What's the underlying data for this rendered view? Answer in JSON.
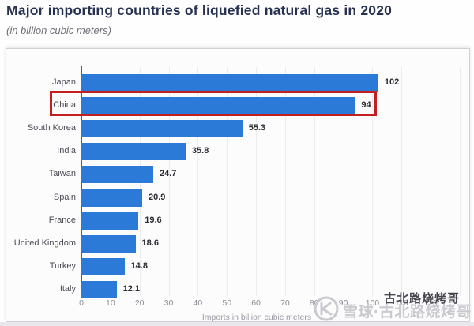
{
  "header": {
    "title": "Major importing countries of liquefied natural gas in 2020",
    "subtitle": "(in billion cubic meters)"
  },
  "chart_data": {
    "type": "bar",
    "orientation": "horizontal",
    "title": "Major importing countries of liquefied natural gas in 2020",
    "subtitle": "(in billion cubic meters)",
    "categories": [
      "Japan",
      "China",
      "South Korea",
      "India",
      "Taiwan",
      "Spain",
      "France",
      "United Kingdom",
      "Turkey",
      "Italy"
    ],
    "values": [
      102,
      94,
      55.3,
      35.8,
      24.7,
      20.9,
      19.6,
      18.6,
      14.8,
      12.1
    ],
    "value_labels": [
      "102",
      "94",
      "55.3",
      "35.8",
      "24.7",
      "20.9",
      "19.6",
      "18.6",
      "14.8",
      "12.1"
    ],
    "xlabel": "Imports in billion cubic meters",
    "xlim": [
      0,
      130
    ],
    "xticks": [
      0,
      10,
      20,
      30,
      40,
      50,
      60,
      70,
      80,
      90,
      100,
      110,
      120
    ],
    "grid": true,
    "legend": false,
    "bar_color": "#2b7ad8",
    "highlight": {
      "category": "China",
      "box_color": "#c41f1f"
    }
  },
  "watermark": {
    "logo": "xueqiu-logo",
    "brand_text": "雪球·古北路烧烤哥",
    "overlay_text": "古北路烧烤哥",
    "color_light": "#c9c9cf",
    "color_dark": "#46464d"
  }
}
